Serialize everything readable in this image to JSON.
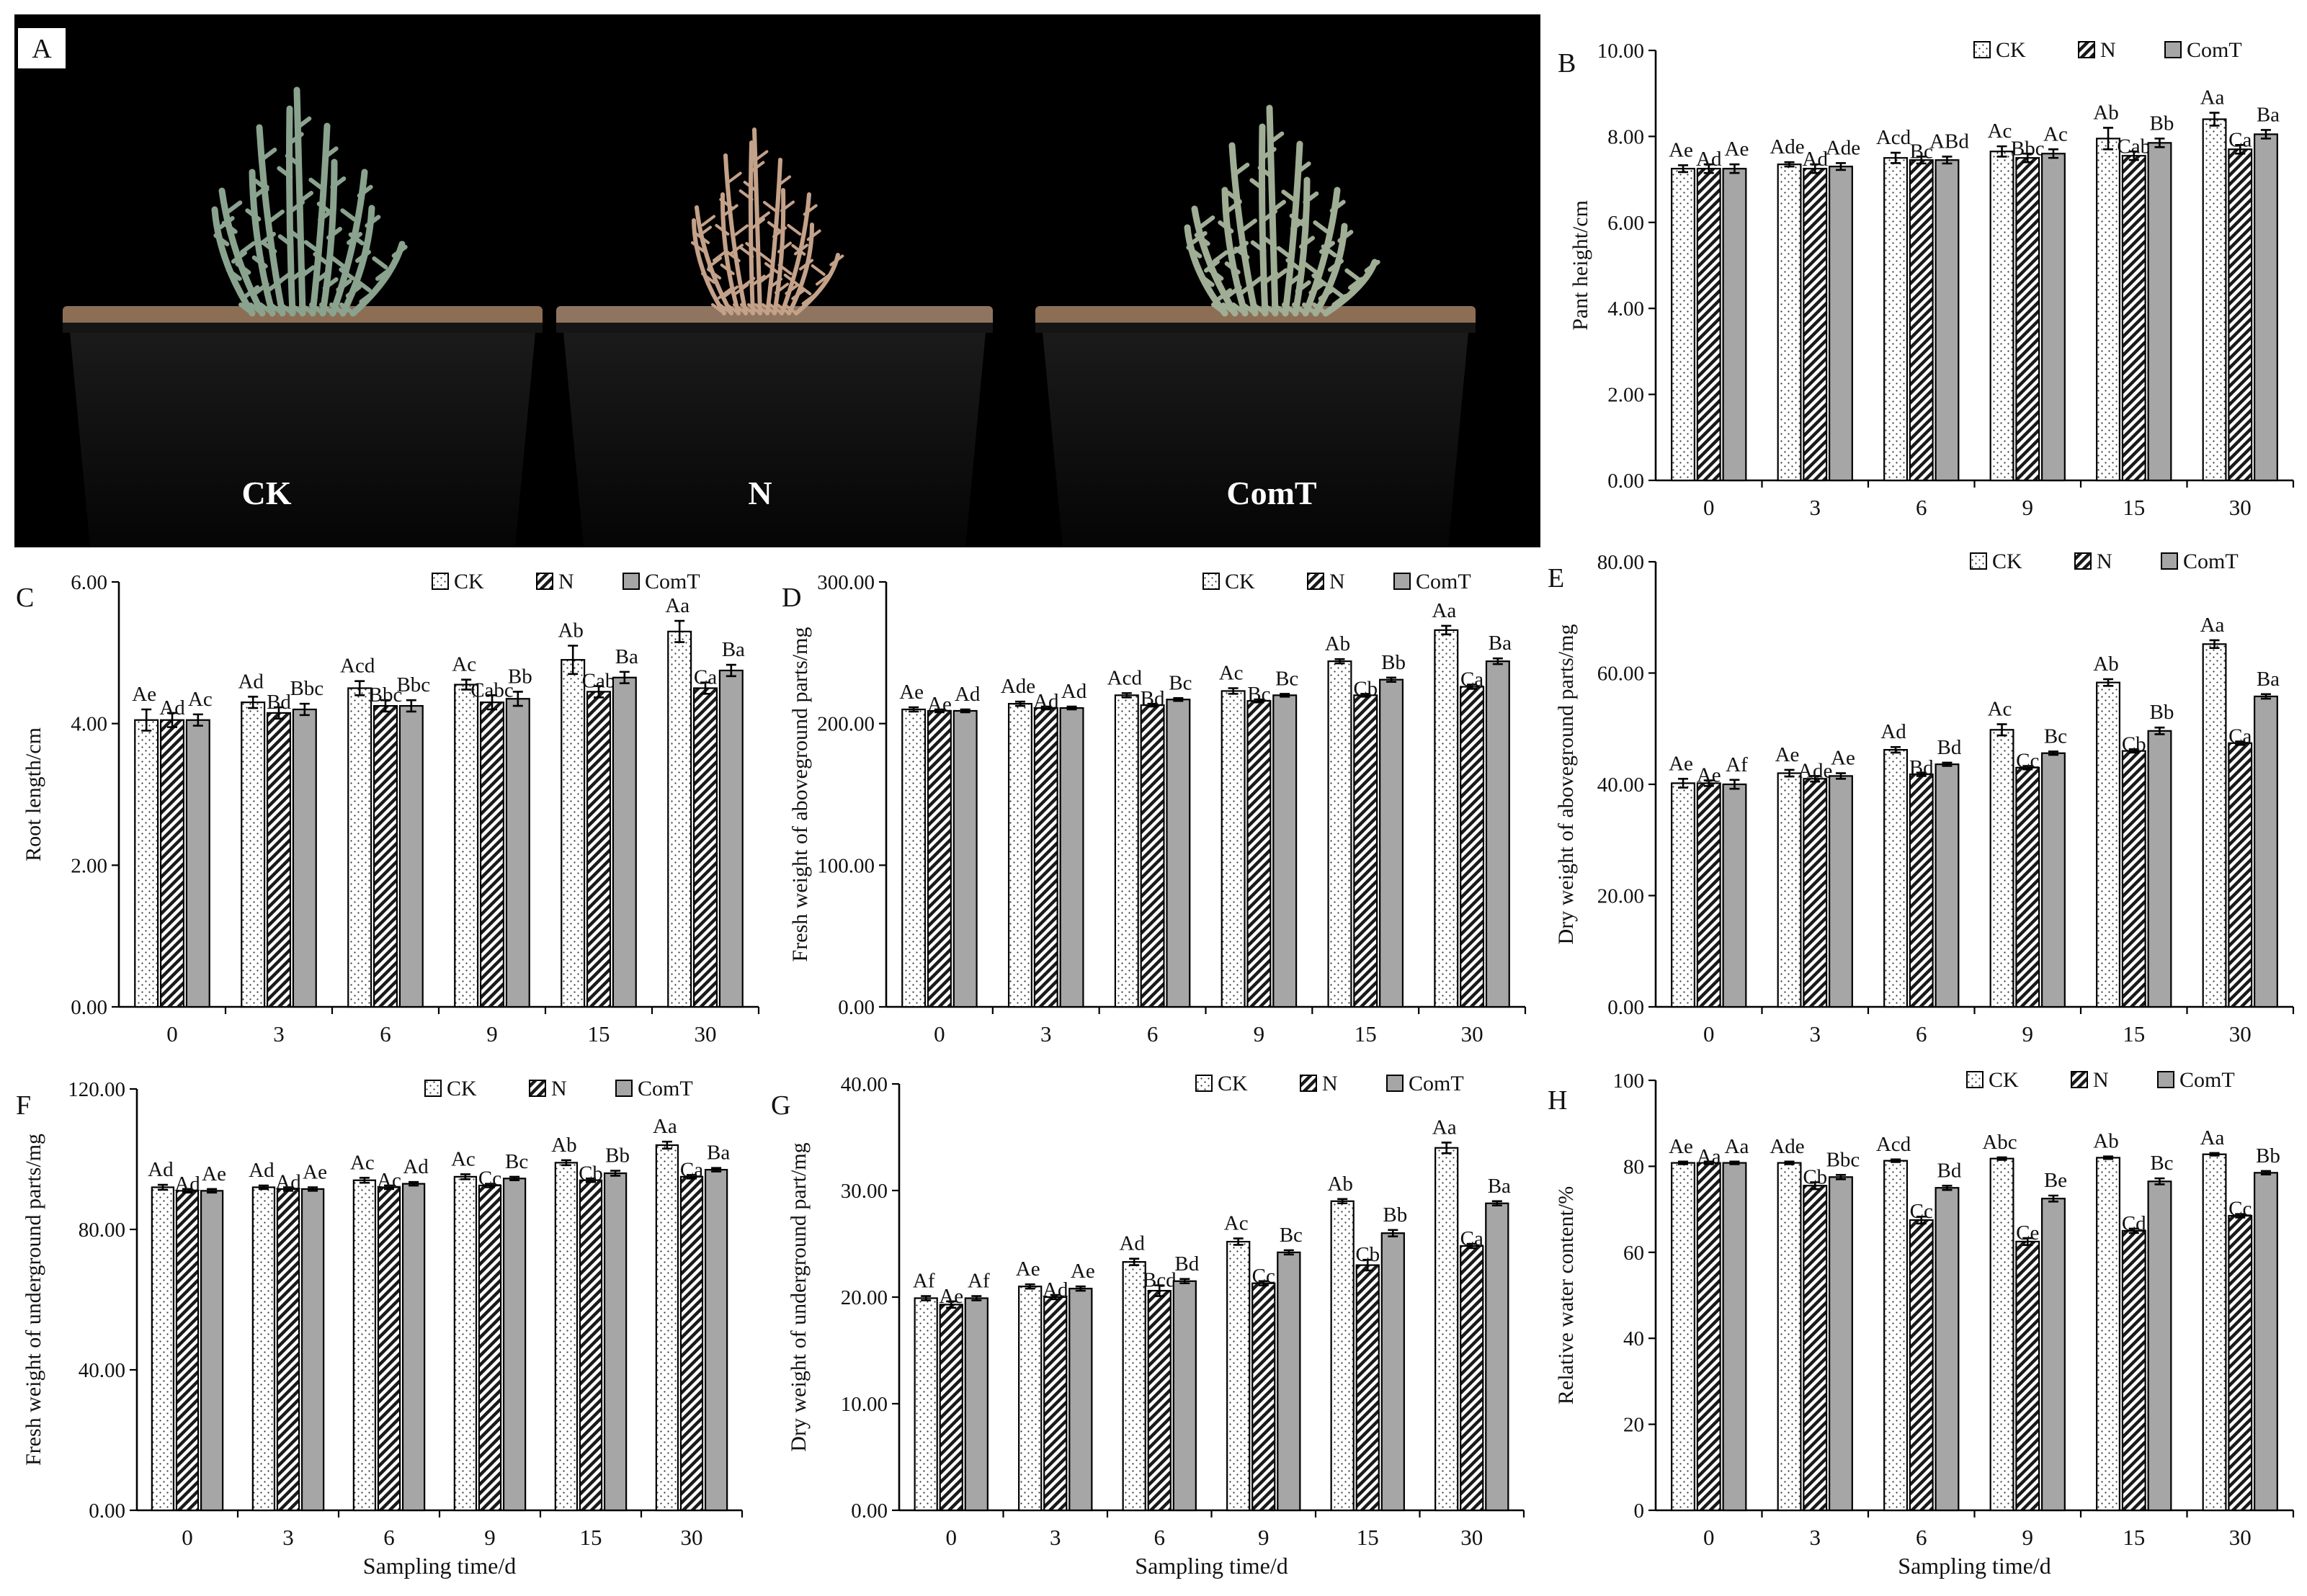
{
  "photo": {
    "panel_label": "A",
    "pots": [
      {
        "label": "CK",
        "plant": "healthy"
      },
      {
        "label": "N",
        "plant": "wilted"
      },
      {
        "label": "ComT",
        "plant": "healthy"
      }
    ]
  },
  "legend_labels": [
    "CK",
    "N",
    "ComT"
  ],
  "colors": {
    "background": "#ffffff",
    "photo_bg": "#000000",
    "comt_fill": "#a6a6a6",
    "ck_fill": "#ffffff",
    "n_fill": "#ffffff"
  },
  "chart_data": [
    {
      "id": "B",
      "panel_label": "B",
      "type": "bar",
      "title": "",
      "ylabel": "Pant height/cm",
      "xlabel": "",
      "categories": [
        "0",
        "3",
        "6",
        "9",
        "15",
        "30"
      ],
      "ylim": [
        0,
        10
      ],
      "yticks": [
        "0.00",
        "2.00",
        "4.00",
        "6.00",
        "8.00",
        "10.00"
      ],
      "series": [
        {
          "name": "CK",
          "values": [
            7.25,
            7.35,
            7.5,
            7.65,
            7.95,
            8.4
          ],
          "errors": [
            0.08,
            0.05,
            0.12,
            0.12,
            0.25,
            0.15
          ],
          "labels": [
            "Ae",
            "Ade",
            "Acd",
            "Ac",
            "Ab",
            "Aa"
          ]
        },
        {
          "name": "N",
          "values": [
            7.25,
            7.25,
            7.45,
            7.5,
            7.55,
            7.7
          ],
          "errors": [
            0.1,
            0.1,
            0.08,
            0.1,
            0.1,
            0.1
          ],
          "labels": [
            "Ad",
            "Ad",
            "Bc",
            "Bbc",
            "Cab",
            "Ca"
          ]
        },
        {
          "name": "ComT",
          "values": [
            7.25,
            7.3,
            7.45,
            7.6,
            7.85,
            8.05
          ],
          "errors": [
            0.1,
            0.08,
            0.08,
            0.1,
            0.1,
            0.1
          ],
          "labels": [
            "Ae",
            "Ade",
            "ABd",
            "Ac",
            "Bb",
            "Ba"
          ]
        }
      ]
    },
    {
      "id": "C",
      "panel_label": "C",
      "type": "bar",
      "title": "",
      "ylabel": "Root length/cm",
      "xlabel": "",
      "categories": [
        "0",
        "3",
        "6",
        "9",
        "15",
        "30"
      ],
      "ylim": [
        0,
        6
      ],
      "yticks": [
        "0.00",
        "2.00",
        "4.00",
        "6.00"
      ],
      "series": [
        {
          "name": "CK",
          "values": [
            4.05,
            4.3,
            4.5,
            4.55,
            4.9,
            5.3
          ],
          "errors": [
            0.15,
            0.08,
            0.1,
            0.07,
            0.2,
            0.15
          ],
          "labels": [
            "Ae",
            "Ad",
            "Acd",
            "Ac",
            "Ab",
            "Aa"
          ]
        },
        {
          "name": "N",
          "values": [
            4.05,
            4.15,
            4.25,
            4.3,
            4.45,
            4.5
          ],
          "errors": [
            0.1,
            0.08,
            0.08,
            0.1,
            0.08,
            0.08
          ],
          "labels": [
            "Ad",
            "Bd",
            "Bbc",
            "Cabc",
            "Cab",
            "Ca"
          ]
        },
        {
          "name": "ComT",
          "values": [
            4.05,
            4.2,
            4.25,
            4.35,
            4.65,
            4.75
          ],
          "errors": [
            0.08,
            0.08,
            0.08,
            0.1,
            0.08,
            0.08
          ],
          "labels": [
            "Ac",
            "Bbc",
            "Bbc",
            "Bb",
            "Ba",
            "Ba"
          ]
        }
      ]
    },
    {
      "id": "D",
      "panel_label": "D",
      "type": "bar",
      "title": "",
      "ylabel": "Fresh weight of aboveground parts/mg",
      "xlabel": "",
      "categories": [
        "0",
        "3",
        "6",
        "9",
        "15",
        "30"
      ],
      "ylim": [
        0,
        300
      ],
      "yticks": [
        "0.00",
        "100.00",
        "200.00",
        "300.00"
      ],
      "series": [
        {
          "name": "CK",
          "values": [
            210,
            214,
            220,
            223,
            244,
            266
          ],
          "errors": [
            1.5,
            1.5,
            1.5,
            2,
            1.5,
            3
          ],
          "labels": [
            "Ae",
            "Ade",
            "Acd",
            "Ac",
            "Ab",
            "Aa"
          ]
        },
        {
          "name": "N",
          "values": [
            209,
            211,
            213,
            216,
            220,
            226
          ],
          "errors": [
            1,
            1,
            1,
            1,
            1,
            1.5
          ],
          "labels": [
            "Ae",
            "Ad",
            "Bd",
            "Bc",
            "Cb",
            "Ca"
          ]
        },
        {
          "name": "ComT",
          "values": [
            209,
            211,
            217,
            220,
            231,
            244
          ],
          "errors": [
            1,
            1,
            1,
            1,
            1.5,
            2
          ],
          "labels": [
            "Ad",
            "Ad",
            "Bc",
            "Bc",
            "Bb",
            "Ba"
          ]
        }
      ]
    },
    {
      "id": "E",
      "panel_label": "E",
      "type": "bar",
      "title": "",
      "ylabel": "Dry weight of aboveground parts/mg",
      "xlabel": "",
      "categories": [
        "0",
        "3",
        "6",
        "9",
        "15",
        "30"
      ],
      "ylim": [
        0,
        80
      ],
      "yticks": [
        "0.00",
        "20.00",
        "40.00",
        "60.00",
        "80.00"
      ],
      "series": [
        {
          "name": "CK",
          "values": [
            40.2,
            42.0,
            46.2,
            49.8,
            58.3,
            65.2
          ],
          "errors": [
            0.8,
            0.6,
            0.5,
            1.0,
            0.6,
            0.7
          ],
          "labels": [
            "Ae",
            "Ae",
            "Ad",
            "Ac",
            "Ab",
            "Aa"
          ]
        },
        {
          "name": "N",
          "values": [
            40.2,
            41.0,
            41.8,
            43.0,
            46.0,
            47.4
          ],
          "errors": [
            0.5,
            0.5,
            0.3,
            0.3,
            0.3,
            0.3
          ],
          "labels": [
            "Ae",
            "Ade",
            "Bd",
            "Cc",
            "Cb",
            "Ca"
          ]
        },
        {
          "name": "ComT",
          "values": [
            40.0,
            41.5,
            43.6,
            45.6,
            49.6,
            55.8
          ],
          "errors": [
            0.8,
            0.5,
            0.3,
            0.3,
            0.6,
            0.4
          ],
          "labels": [
            "Af",
            "Ae",
            "Bd",
            "Bc",
            "Bb",
            "Ba"
          ]
        }
      ]
    },
    {
      "id": "F",
      "panel_label": "F",
      "type": "bar",
      "title": "",
      "ylabel": "Fresh weight of underground parts/mg",
      "xlabel": "Sampling time/d",
      "categories": [
        "0",
        "3",
        "6",
        "9",
        "15",
        "30"
      ],
      "ylim": [
        0,
        120
      ],
      "yticks": [
        "0.00",
        "40.00",
        "80.00",
        "120.00"
      ],
      "series": [
        {
          "name": "CK",
          "values": [
            92,
            92,
            94,
            95,
            99,
            104
          ],
          "errors": [
            0.7,
            0.5,
            0.7,
            0.7,
            0.7,
            1.0
          ],
          "labels": [
            "Ad",
            "Ad",
            "Ac",
            "Ac",
            "Ab",
            "Aa"
          ]
        },
        {
          "name": "N",
          "values": [
            91,
            91.5,
            92,
            92.5,
            94,
            95
          ],
          "errors": [
            0.5,
            0.5,
            0.5,
            0.5,
            0.5,
            0.5
          ],
          "labels": [
            "Ad",
            "Ad",
            "Ac",
            "Cc",
            "Cb",
            "Ca"
          ]
        },
        {
          "name": "ComT",
          "values": [
            91,
            91.5,
            93,
            94.5,
            96,
            97
          ],
          "errors": [
            0.5,
            0.5,
            0.5,
            0.5,
            0.7,
            0.5
          ],
          "labels": [
            "Ae",
            "Ae",
            "Ad",
            "Bc",
            "Bb",
            "Ba"
          ]
        }
      ]
    },
    {
      "id": "G",
      "panel_label": "G",
      "type": "bar",
      "title": "",
      "ylabel": "Dry weight of underground part/mg",
      "xlabel": "Sampling time/d",
      "categories": [
        "0",
        "3",
        "6",
        "9",
        "15",
        "30"
      ],
      "ylim": [
        0,
        40
      ],
      "yticks": [
        "0.00",
        "10.00",
        "20.00",
        "30.00",
        "40.00"
      ],
      "series": [
        {
          "name": "CK",
          "values": [
            19.9,
            21.0,
            23.3,
            25.2,
            29.0,
            34.0
          ],
          "errors": [
            0.2,
            0.2,
            0.3,
            0.3,
            0.2,
            0.5
          ],
          "labels": [
            "Af",
            "Ae",
            "Ad",
            "Ac",
            "Ab",
            "Aa"
          ]
        },
        {
          "name": "N",
          "values": [
            19.3,
            20.0,
            20.6,
            21.3,
            23.0,
            24.8
          ],
          "errors": [
            0.3,
            0.2,
            0.5,
            0.2,
            0.5,
            0.2
          ],
          "labels": [
            "Ae",
            "Ad",
            "Bcd",
            "Cc",
            "Cb",
            "Ca"
          ]
        },
        {
          "name": "ComT",
          "values": [
            19.9,
            20.8,
            21.5,
            24.2,
            26.0,
            28.8
          ],
          "errors": [
            0.2,
            0.2,
            0.2,
            0.2,
            0.3,
            0.2
          ],
          "labels": [
            "Af",
            "Ae",
            "Bd",
            "Bc",
            "Bb",
            "Ba"
          ]
        }
      ]
    },
    {
      "id": "H",
      "panel_label": "H",
      "type": "bar",
      "title": "",
      "ylabel": "Relative water content/%",
      "xlabel": "Sampling time/d",
      "categories": [
        "0",
        "3",
        "6",
        "9",
        "15",
        "30"
      ],
      "ylim": [
        0,
        100
      ],
      "yticks": [
        "0",
        "20",
        "40",
        "60",
        "80",
        "100"
      ],
      "series": [
        {
          "name": "CK",
          "values": [
            80.8,
            80.8,
            81.3,
            81.8,
            82.0,
            82.8
          ],
          "errors": [
            0.3,
            0.3,
            0.3,
            0.3,
            0.3,
            0.3
          ],
          "labels": [
            "Ae",
            "Ade",
            "Acd",
            "Abc",
            "Ab",
            "Aa"
          ]
        },
        {
          "name": "N",
          "values": [
            80.8,
            75.5,
            67.5,
            62.5,
            65.0,
            68.5
          ],
          "errors": [
            0.3,
            0.8,
            0.8,
            0.8,
            0.5,
            0.4
          ],
          "labels": [
            "Aa",
            "Cb",
            "Cc",
            "Ce",
            "Cd",
            "Cc"
          ]
        },
        {
          "name": "ComT",
          "values": [
            80.8,
            77.5,
            75.0,
            72.5,
            76.5,
            78.5
          ],
          "errors": [
            0.3,
            0.5,
            0.5,
            0.7,
            0.7,
            0.4
          ],
          "labels": [
            "Aa",
            "Bbc",
            "Bd",
            "Be",
            "Bc",
            "Bb"
          ]
        }
      ]
    }
  ]
}
